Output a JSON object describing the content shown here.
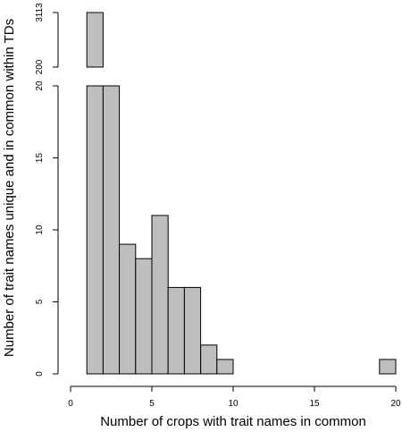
{
  "chart_data": {
    "type": "bar",
    "xlabel": "Number of crops with trait names in common",
    "ylabel": "Number of trait names unique and in common within TDs",
    "xlim": [
      0,
      20
    ],
    "ylim": [
      0,
      20
    ],
    "x_ticks": [
      "0",
      "5",
      "10",
      "15",
      "20"
    ],
    "y_ticks": [
      "0",
      "5",
      "10",
      "15",
      "20"
    ],
    "y_break_ticks": [
      "200",
      "3113"
    ],
    "axis_break": {
      "lower_max": 20,
      "upper_min": 200,
      "upper_max": 3113
    },
    "bin_width": 1,
    "bins": [
      {
        "x0": 1,
        "x1": 2,
        "value": 3113
      },
      {
        "x0": 2,
        "x1": 3,
        "value": 20
      },
      {
        "x0": 3,
        "x1": 4,
        "value": 9
      },
      {
        "x0": 4,
        "x1": 5,
        "value": 8
      },
      {
        "x0": 5,
        "x1": 6,
        "value": 11
      },
      {
        "x0": 6,
        "x1": 7,
        "value": 6
      },
      {
        "x0": 7,
        "x1": 8,
        "value": 6
      },
      {
        "x0": 8,
        "x1": 9,
        "value": 2
      },
      {
        "x0": 9,
        "x1": 10,
        "value": 1
      },
      {
        "x0": 19,
        "x1": 20,
        "value": 1
      }
    ],
    "grid": false,
    "legend": "none",
    "bar_color": "#bebebe",
    "edge_color": "#000000"
  }
}
